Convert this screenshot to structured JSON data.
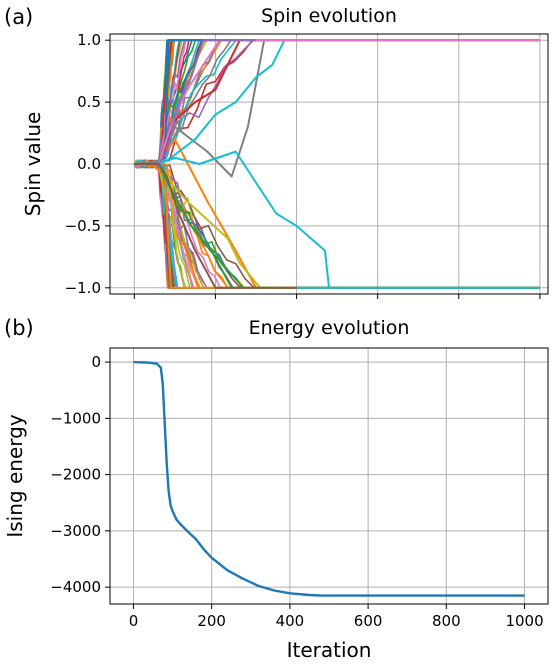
{
  "chart_data": [
    {
      "id": "a",
      "type": "line",
      "panel_letter": "(a)",
      "title": "Spin evolution",
      "xlabel": "",
      "ylabel": "Spin value",
      "xlim": [
        -60,
        1020
      ],
      "ylim": [
        -1.05,
        1.05
      ],
      "xticks": [
        0,
        200,
        400,
        600,
        800,
        1000
      ],
      "xtick_labels_visible": false,
      "yticks": [
        -1.0,
        -0.5,
        0.0,
        0.5,
        1.0
      ],
      "ytick_labels": [
        "−1.0",
        "−0.5",
        "0.0",
        "0.5",
        "1.0"
      ],
      "grid": true,
      "legend": "none",
      "n_series_approx": 100,
      "palette": [
        "#1f77b4",
        "#ff7f0e",
        "#2ca02c",
        "#d62728",
        "#9467bd",
        "#8c564b",
        "#e377c2",
        "#7f7f7f",
        "#bcbd22",
        "#17becf"
      ],
      "description_of_series": "Many spin trajectories start near 0 at iteration 0, stay near 0 until about iteration 70, then diverge and saturate at either +1 or -1; the last ones saturate around iteration 480.",
      "representative_series": [
        {
          "x": [
            0,
            50,
            75,
            85
          ],
          "y": [
            0,
            0.01,
            0.05,
            1.0
          ],
          "color": "#1f77b4"
        },
        {
          "x": [
            0,
            50,
            75,
            90
          ],
          "y": [
            0,
            -0.02,
            -0.1,
            -1.0
          ],
          "color": "#ff7f0e"
        },
        {
          "x": [
            0,
            60,
            100,
            180,
            250,
            300
          ],
          "y": [
            0,
            0.0,
            0.2,
            -0.3,
            -0.7,
            -1.0
          ],
          "color": "#ff7f0e"
        },
        {
          "x": [
            0,
            60,
            100,
            180,
            240,
            280,
            320
          ],
          "y": [
            0,
            0.02,
            0.3,
            0.1,
            -0.1,
            0.3,
            1.0
          ],
          "color": "#7f7f7f"
        },
        {
          "x": [
            0,
            60,
            100,
            160,
            250,
            350,
            400,
            470,
            480
          ],
          "y": [
            0,
            0.0,
            0.05,
            0.0,
            0.1,
            -0.4,
            -0.5,
            -0.7,
            -1.0
          ],
          "color": "#17becf"
        },
        {
          "x": [
            0,
            60,
            90,
            150,
            200,
            250,
            300,
            340,
            370
          ],
          "y": [
            0,
            -0.01,
            0.05,
            0.2,
            0.4,
            0.5,
            0.7,
            0.8,
            1.0
          ],
          "color": "#17becf"
        },
        {
          "x": [
            0,
            60,
            90,
            130,
            180,
            230,
            260,
            310
          ],
          "y": [
            0,
            0.0,
            -0.15,
            -0.3,
            -0.45,
            -0.6,
            -0.8,
            -1.0
          ],
          "color": "#bcbd22"
        },
        {
          "x": [
            0,
            60,
            100,
            150,
            200,
            260
          ],
          "y": [
            0,
            0.0,
            0.35,
            0.5,
            0.6,
            1.0
          ],
          "color": "#d62728"
        },
        {
          "x": [
            0,
            60,
            90,
            140,
            190,
            240
          ],
          "y": [
            0,
            0.0,
            -0.2,
            -0.5,
            -0.7,
            -1.0
          ],
          "color": "#2ca02c"
        },
        {
          "x": [
            0,
            60,
            90,
            130,
            170,
            210
          ],
          "y": [
            0,
            0.0,
            0.3,
            0.6,
            0.8,
            1.0
          ],
          "color": "#e377c2"
        },
        {
          "x": [
            0,
            60,
            80,
            110,
            140,
            170
          ],
          "y": [
            0,
            0.0,
            0.1,
            0.5,
            0.7,
            1.0
          ],
          "color": "#9467bd"
        },
        {
          "x": [
            0,
            60,
            80,
            110,
            150,
            200
          ],
          "y": [
            0,
            0.0,
            -0.1,
            -0.4,
            -0.7,
            -1.0
          ],
          "color": "#8c564b"
        }
      ]
    },
    {
      "id": "b",
      "type": "line",
      "panel_letter": "(b)",
      "title": "Energy evolution",
      "xlabel": "Iteration",
      "ylabel": "Ising energy",
      "xlim": [
        -60,
        1060
      ],
      "ylim": [
        -4300,
        250
      ],
      "xticks": [
        0,
        200,
        400,
        600,
        800,
        1000
      ],
      "xtick_labels": [
        "0",
        "200",
        "400",
        "600",
        "800",
        "1000"
      ],
      "yticks": [
        0,
        -1000,
        -2000,
        -3000,
        -4000
      ],
      "ytick_labels": [
        "0",
        "−1000",
        "−2000",
        "−3000",
        "−4000"
      ],
      "grid": true,
      "legend": "none",
      "series": [
        {
          "color": "#1f77b4",
          "x": [
            0,
            40,
            60,
            70,
            75,
            80,
            85,
            90,
            95,
            100,
            110,
            120,
            140,
            160,
            180,
            200,
            240,
            280,
            320,
            360,
            400,
            450,
            480,
            500,
            600,
            700,
            800,
            900,
            1000
          ],
          "y": [
            0,
            -10,
            -30,
            -100,
            -400,
            -1100,
            -1800,
            -2300,
            -2550,
            -2650,
            -2800,
            -2880,
            -3020,
            -3150,
            -3330,
            -3480,
            -3700,
            -3850,
            -3980,
            -4060,
            -4110,
            -4140,
            -4150,
            -4150,
            -4150,
            -4150,
            -4150,
            -4150,
            -4150
          ]
        }
      ]
    }
  ]
}
